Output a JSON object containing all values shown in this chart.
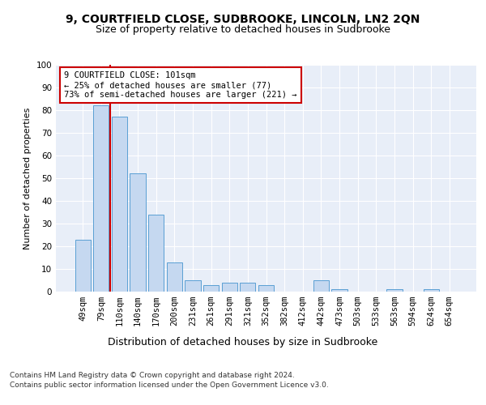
{
  "title1": "9, COURTFIELD CLOSE, SUDBROOKE, LINCOLN, LN2 2QN",
  "title2": "Size of property relative to detached houses in Sudbrooke",
  "xlabel": "Distribution of detached houses by size in Sudbrooke",
  "ylabel": "Number of detached properties",
  "categories": [
    "49sqm",
    "79sqm",
    "110sqm",
    "140sqm",
    "170sqm",
    "200sqm",
    "231sqm",
    "261sqm",
    "291sqm",
    "321sqm",
    "352sqm",
    "382sqm",
    "412sqm",
    "442sqm",
    "473sqm",
    "503sqm",
    "533sqm",
    "563sqm",
    "594sqm",
    "624sqm",
    "654sqm"
  ],
  "values": [
    23,
    82,
    77,
    52,
    34,
    13,
    5,
    3,
    4,
    4,
    3,
    0,
    0,
    5,
    1,
    0,
    0,
    1,
    0,
    1,
    0
  ],
  "bar_color": "#c5d8f0",
  "bar_edge_color": "#5a9fd4",
  "vline_x_index": 2,
  "vline_color": "#cc0000",
  "annotation_text": "9 COURTFIELD CLOSE: 101sqm\n← 25% of detached houses are smaller (77)\n73% of semi-detached houses are larger (221) →",
  "annotation_box_color": "#ffffff",
  "annotation_box_edge_color": "#cc0000",
  "ylim": [
    0,
    100
  ],
  "yticks": [
    0,
    10,
    20,
    30,
    40,
    50,
    60,
    70,
    80,
    90,
    100
  ],
  "background_color": "#e8eef8",
  "grid_color": "#ffffff",
  "footer_line1": "Contains HM Land Registry data © Crown copyright and database right 2024.",
  "footer_line2": "Contains public sector information licensed under the Open Government Licence v3.0.",
  "title1_fontsize": 10,
  "title2_fontsize": 9,
  "xlabel_fontsize": 9,
  "ylabel_fontsize": 8,
  "tick_fontsize": 7.5,
  "annotation_fontsize": 7.5,
  "footer_fontsize": 6.5
}
